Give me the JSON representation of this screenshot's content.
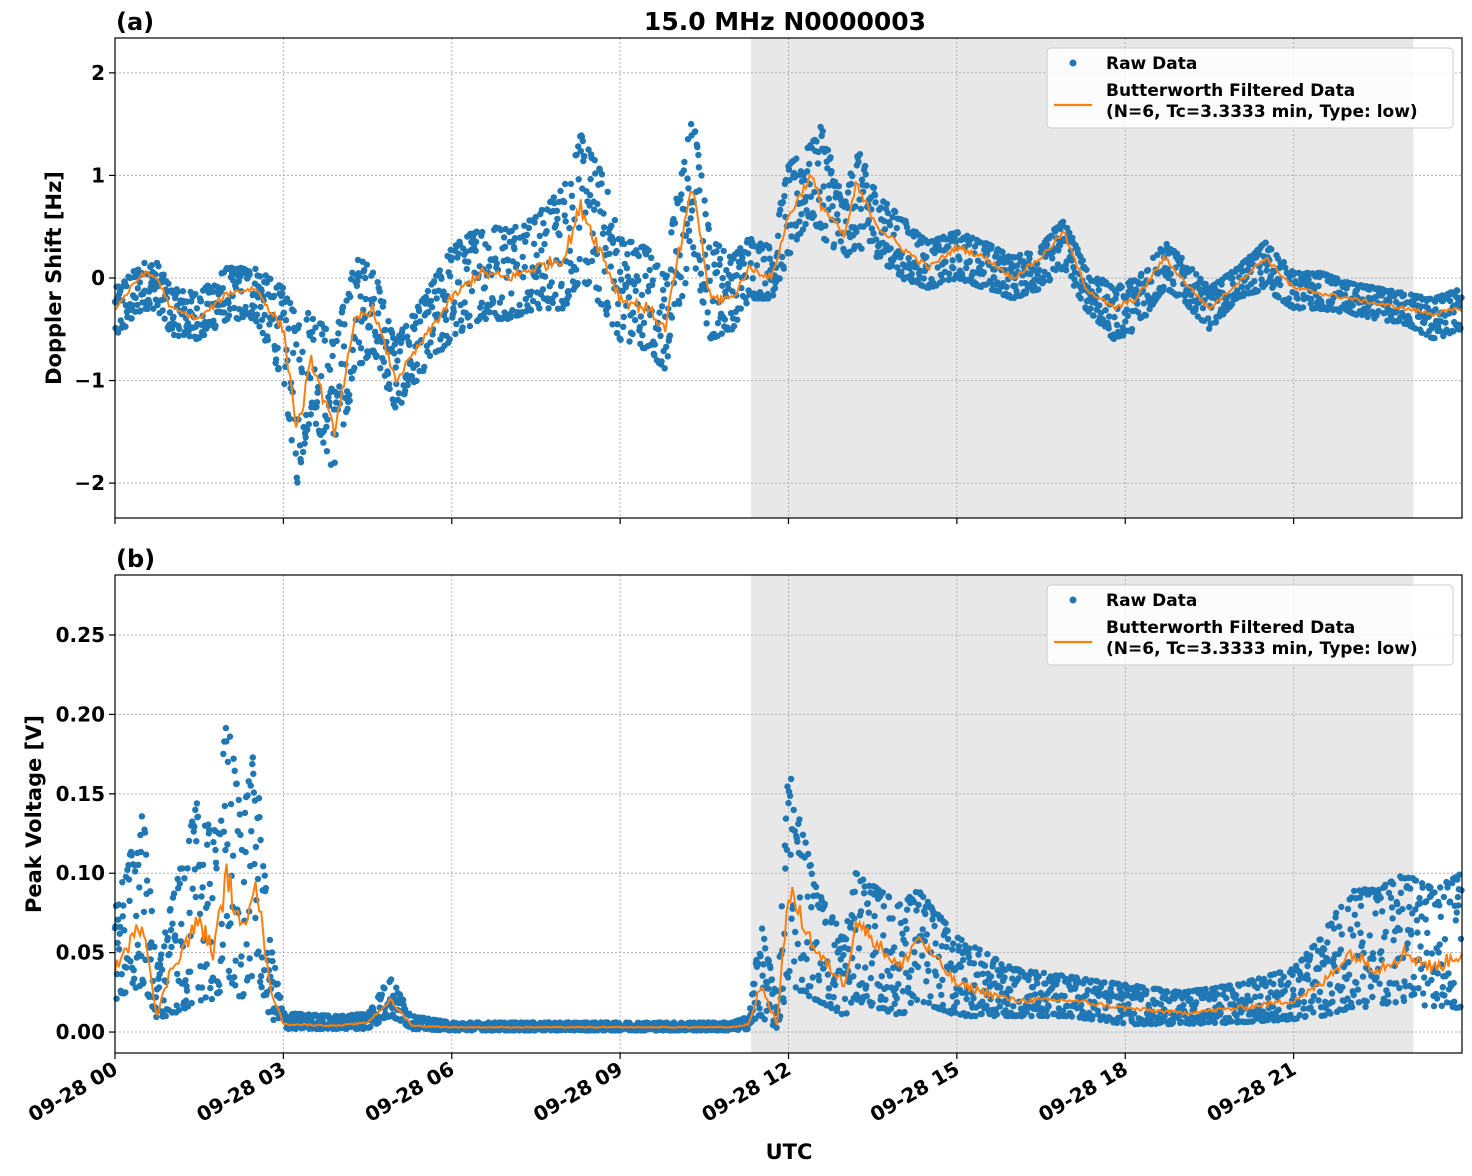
{
  "chart_data": {
    "title": "15.0 MHz N0000003",
    "xlabel": "UTC",
    "date": "09-28",
    "x_ticks": [
      "09-28 00",
      "09-28 03",
      "09-28 06",
      "09-28 09",
      "09-28 12",
      "09-28 15",
      "09-28 18",
      "09-28 21"
    ],
    "xlim": [
      "00:00",
      "24:00"
    ],
    "grid": true,
    "colors": {
      "raw": "#1f77b4",
      "filtered": "#ff7f0e",
      "shade": "#e8e8e8"
    },
    "shaded_interval": [
      "11:20",
      "23:08"
    ],
    "legend": {
      "placement": "top-right",
      "raw_label": "Raw Data",
      "filtered_label_1": "Butterworth Filtered Data",
      "filtered_label_2": "(N=6, Tc=3.3333 min, Type: low)"
    },
    "panels": [
      {
        "label": "(a)",
        "type": "scatter+line",
        "ylabel": "Doppler Shift [Hz]",
        "ylim": [
          -2.34,
          2.34
        ],
        "y_ticks": [
          -2,
          -1,
          0,
          1,
          2
        ],
        "y_tick_labels": [
          "−2",
          "−1",
          "0",
          "1",
          "2"
        ],
        "series": [
          {
            "name": "Raw Data",
            "kind": "scatter-envelope",
            "t": [
              "00:00",
              "00:30",
              "00:45",
              "01:00",
              "01:30",
              "02:00",
              "02:30",
              "03:00",
              "03:15",
              "03:30",
              "03:54",
              "04:18",
              "04:36",
              "05:00",
              "05:30",
              "06:00",
              "06:30",
              "07:00",
              "07:30",
              "08:00",
              "08:18",
              "08:42",
              "09:00",
              "09:30",
              "09:48",
              "10:00",
              "10:18",
              "10:36",
              "11:00",
              "11:18",
              "11:42",
              "12:00",
              "12:24",
              "12:36",
              "13:00",
              "13:12",
              "13:36",
              "14:00",
              "14:30",
              "15:00",
              "15:30",
              "16:00",
              "16:30",
              "16:54",
              "17:18",
              "17:48",
              "18:12",
              "18:42",
              "19:00",
              "19:30",
              "20:00",
              "20:30",
              "21:00",
              "21:30",
              "22:00",
              "22:30",
              "23:00",
              "23:30",
              "24:00"
            ],
            "low": [
              -0.6,
              -0.3,
              -0.3,
              -0.55,
              -0.6,
              -0.4,
              -0.4,
              -1.0,
              -2.0,
              -1.3,
              -1.9,
              -0.9,
              -0.7,
              -1.3,
              -0.9,
              -0.6,
              -0.4,
              -0.4,
              -0.3,
              -0.3,
              0.0,
              -0.3,
              -0.6,
              -0.7,
              -0.9,
              -0.4,
              0.2,
              -0.6,
              -0.5,
              -0.2,
              -0.2,
              0.2,
              0.6,
              0.4,
              0.2,
              0.3,
              0.2,
              0.0,
              -0.1,
              0.0,
              -0.1,
              -0.2,
              -0.1,
              0.1,
              -0.3,
              -0.6,
              -0.5,
              -0.1,
              -0.2,
              -0.5,
              -0.2,
              -0.1,
              -0.3,
              -0.3,
              -0.35,
              -0.4,
              -0.45,
              -0.6,
              -0.5
            ],
            "high": [
              -0.1,
              0.15,
              0.15,
              -0.1,
              -0.15,
              0.1,
              0.1,
              -0.1,
              -0.4,
              -0.3,
              -0.6,
              0.2,
              0.1,
              -0.6,
              -0.2,
              0.3,
              0.5,
              0.5,
              0.6,
              0.9,
              1.4,
              1.0,
              0.4,
              0.3,
              0.0,
              0.8,
              1.6,
              0.4,
              0.2,
              0.4,
              0.3,
              1.1,
              1.3,
              1.5,
              0.7,
              1.3,
              0.8,
              0.6,
              0.35,
              0.45,
              0.35,
              0.2,
              0.3,
              0.6,
              0.1,
              -0.1,
              0.0,
              0.35,
              0.2,
              -0.1,
              0.1,
              0.35,
              0.05,
              0.05,
              -0.05,
              -0.1,
              -0.15,
              -0.2,
              -0.1
            ]
          },
          {
            "name": "Butterworth Filtered Data",
            "kind": "line",
            "t": [
              "00:00",
              "00:30",
              "00:45",
              "01:00",
              "01:30",
              "02:00",
              "02:30",
              "03:00",
              "03:15",
              "03:30",
              "03:54",
              "04:18",
              "04:36",
              "05:00",
              "05:30",
              "06:00",
              "06:30",
              "07:00",
              "07:30",
              "08:00",
              "08:18",
              "08:42",
              "09:00",
              "09:30",
              "09:48",
              "10:00",
              "10:18",
              "10:36",
              "11:00",
              "11:18",
              "11:42",
              "12:00",
              "12:24",
              "12:36",
              "13:00",
              "13:12",
              "13:36",
              "14:00",
              "14:30",
              "15:00",
              "15:30",
              "16:00",
              "16:30",
              "16:54",
              "17:18",
              "17:48",
              "18:12",
              "18:42",
              "19:00",
              "19:30",
              "20:00",
              "20:30",
              "21:00",
              "21:30",
              "22:00",
              "22:30",
              "23:00",
              "23:30",
              "24:00"
            ],
            "y": [
              -0.3,
              0.05,
              0.0,
              -0.3,
              -0.4,
              -0.15,
              -0.1,
              -0.5,
              -1.5,
              -0.8,
              -1.5,
              -0.4,
              -0.3,
              -1.0,
              -0.6,
              -0.2,
              0.05,
              0.0,
              0.1,
              0.2,
              0.7,
              0.2,
              -0.2,
              -0.3,
              -0.5,
              0.1,
              0.9,
              -0.2,
              -0.2,
              0.1,
              0.0,
              0.6,
              1.0,
              0.7,
              0.4,
              0.9,
              0.5,
              0.3,
              0.1,
              0.3,
              0.2,
              0.0,
              0.2,
              0.45,
              -0.1,
              -0.3,
              -0.2,
              0.2,
              0.0,
              -0.3,
              -0.05,
              0.2,
              -0.1,
              -0.15,
              -0.2,
              -0.25,
              -0.3,
              -0.35,
              -0.3
            ]
          }
        ]
      },
      {
        "label": "(b)",
        "type": "scatter+line",
        "ylabel": "Peak Voltage [V]",
        "ylim": [
          -0.0132,
          0.2878
        ],
        "y_ticks": [
          0,
          0.05,
          0.1,
          0.15,
          0.2,
          0.25
        ],
        "y_tick_labels": [
          "0.00",
          "0.05",
          "0.10",
          "0.15",
          "0.20",
          "0.25"
        ],
        "series": [
          {
            "name": "Raw Data",
            "kind": "scatter-envelope",
            "t": [
              "00:00",
              "00:30",
              "00:45",
              "01:00",
              "01:30",
              "01:45",
              "02:00",
              "02:15",
              "02:30",
              "02:45",
              "03:00",
              "04:00",
              "04:30",
              "04:54",
              "05:18",
              "06:00",
              "08:00",
              "10:00",
              "11:00",
              "11:18",
              "11:30",
              "11:48",
              "12:00",
              "12:30",
              "13:00",
              "13:12",
              "14:00",
              "14:18",
              "15:00",
              "16:00",
              "17:00",
              "18:00",
              "19:00",
              "20:00",
              "21:00",
              "21:30",
              "22:00",
              "22:30",
              "23:00",
              "23:30",
              "24:00"
            ],
            "low": [
              0.02,
              0.03,
              0.005,
              0.01,
              0.02,
              0.02,
              0.03,
              0.02,
              0.04,
              0.01,
              0.002,
              0.002,
              0.002,
              0.01,
              0.002,
              0.001,
              0.001,
              0.001,
              0.001,
              0.002,
              0.01,
              0.002,
              0.03,
              0.02,
              0.01,
              0.02,
              0.01,
              0.02,
              0.01,
              0.01,
              0.01,
              0.005,
              0.005,
              0.006,
              0.008,
              0.01,
              0.015,
              0.015,
              0.02,
              0.015,
              0.015
            ],
            "high": [
              0.08,
              0.14,
              0.04,
              0.08,
              0.15,
              0.12,
              0.2,
              0.14,
              0.18,
              0.06,
              0.012,
              0.01,
              0.012,
              0.035,
              0.01,
              0.006,
              0.006,
              0.006,
              0.006,
              0.01,
              0.07,
              0.02,
              0.17,
              0.09,
              0.06,
              0.1,
              0.08,
              0.09,
              0.06,
              0.04,
              0.035,
              0.03,
              0.025,
              0.03,
              0.04,
              0.06,
              0.09,
              0.09,
              0.1,
              0.09,
              0.1
            ]
          },
          {
            "name": "Butterworth Filtered Data",
            "kind": "line",
            "t": [
              "00:00",
              "00:30",
              "00:45",
              "01:00",
              "01:30",
              "01:45",
              "02:00",
              "02:15",
              "02:30",
              "02:45",
              "03:00",
              "04:00",
              "04:30",
              "04:54",
              "05:18",
              "06:00",
              "08:00",
              "10:00",
              "11:00",
              "11:18",
              "11:30",
              "11:48",
              "12:00",
              "12:30",
              "13:00",
              "13:12",
              "14:00",
              "14:18",
              "15:00",
              "16:00",
              "17:00",
              "18:00",
              "19:00",
              "20:00",
              "21:00",
              "21:30",
              "22:00",
              "22:30",
              "23:00",
              "23:30",
              "24:00"
            ],
            "y": [
              0.04,
              0.07,
              0.01,
              0.04,
              0.07,
              0.05,
              0.1,
              0.06,
              0.1,
              0.03,
              0.005,
              0.004,
              0.006,
              0.02,
              0.004,
              0.003,
              0.003,
              0.003,
              0.003,
              0.005,
              0.03,
              0.005,
              0.09,
              0.05,
              0.03,
              0.07,
              0.04,
              0.06,
              0.03,
              0.02,
              0.02,
              0.015,
              0.012,
              0.015,
              0.02,
              0.03,
              0.05,
              0.04,
              0.05,
              0.04,
              0.05
            ]
          }
        ]
      }
    ]
  }
}
